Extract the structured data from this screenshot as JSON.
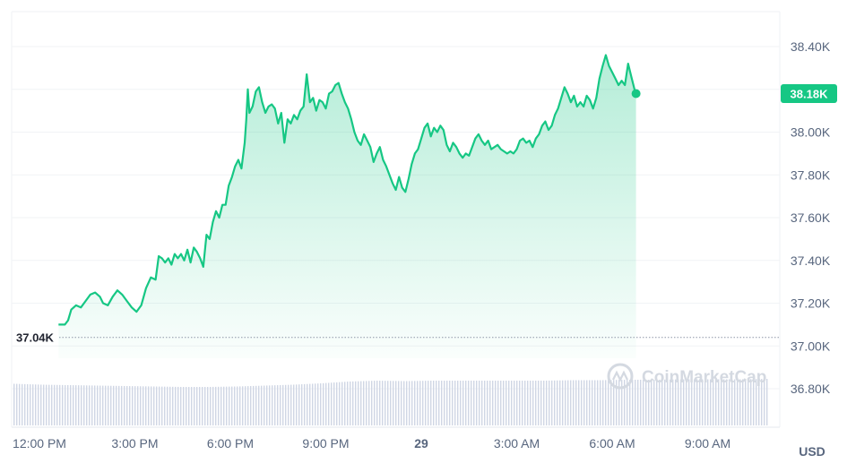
{
  "chart_data": {
    "type": "area",
    "y_unit": "USD",
    "ylim": [
      36.62,
      38.55
    ],
    "y_ticks": [
      {
        "label": "38.40K",
        "value": 38.4
      },
      {
        "label": "38.20K",
        "value": 38.2
      },
      {
        "label": "38.00K",
        "value": 38.0
      },
      {
        "label": "37.80K",
        "value": 37.8
      },
      {
        "label": "37.60K",
        "value": 37.6
      },
      {
        "label": "37.40K",
        "value": 37.4
      },
      {
        "label": "37.20K",
        "value": 37.2
      },
      {
        "label": "37.00K",
        "value": 37.0
      },
      {
        "label": "36.80K",
        "value": 36.8
      }
    ],
    "x_ticks": [
      {
        "label": "12:00 PM",
        "hour": 12,
        "bold": false
      },
      {
        "label": "3:00 PM",
        "hour": 15,
        "bold": false
      },
      {
        "label": "6:00 PM",
        "hour": 18,
        "bold": false
      },
      {
        "label": "9:00 PM",
        "hour": 21,
        "bold": false
      },
      {
        "label": "29",
        "hour": 24,
        "bold": true
      },
      {
        "label": "3:00 AM",
        "hour": 27,
        "bold": false
      },
      {
        "label": "6:00 AM",
        "hour": 30,
        "bold": false
      },
      {
        "label": "9:00 AM",
        "hour": 33,
        "bold": false
      }
    ],
    "baseline": {
      "label": "37.04K",
      "value": 37.04
    },
    "current": {
      "label": "38.18K",
      "value": 38.18
    },
    "series": [
      {
        "color": "#16c784",
        "points": [
          [
            12.6,
            37.1
          ],
          [
            12.8,
            37.1
          ],
          [
            12.9,
            37.12
          ],
          [
            13.0,
            37.17
          ],
          [
            13.15,
            37.19
          ],
          [
            13.3,
            37.18
          ],
          [
            13.45,
            37.21
          ],
          [
            13.6,
            37.24
          ],
          [
            13.75,
            37.25
          ],
          [
            13.9,
            37.23
          ],
          [
            14.0,
            37.2
          ],
          [
            14.15,
            37.19
          ],
          [
            14.3,
            37.23
          ],
          [
            14.45,
            37.26
          ],
          [
            14.6,
            37.24
          ],
          [
            14.75,
            37.21
          ],
          [
            14.9,
            37.18
          ],
          [
            15.05,
            37.16
          ],
          [
            15.2,
            37.19
          ],
          [
            15.35,
            37.27
          ],
          [
            15.5,
            37.32
          ],
          [
            15.65,
            37.31
          ],
          [
            15.75,
            37.42
          ],
          [
            15.85,
            37.41
          ],
          [
            15.95,
            37.39
          ],
          [
            16.05,
            37.41
          ],
          [
            16.15,
            37.38
          ],
          [
            16.25,
            37.43
          ],
          [
            16.35,
            37.41
          ],
          [
            16.45,
            37.43
          ],
          [
            16.55,
            37.4
          ],
          [
            16.65,
            37.45
          ],
          [
            16.75,
            37.39
          ],
          [
            16.85,
            37.46
          ],
          [
            16.95,
            37.44
          ],
          [
            17.05,
            37.41
          ],
          [
            17.15,
            37.37
          ],
          [
            17.25,
            37.52
          ],
          [
            17.35,
            37.5
          ],
          [
            17.45,
            37.58
          ],
          [
            17.55,
            37.63
          ],
          [
            17.65,
            37.6
          ],
          [
            17.75,
            37.66
          ],
          [
            17.85,
            37.66
          ],
          [
            17.95,
            37.75
          ],
          [
            18.05,
            37.79
          ],
          [
            18.15,
            37.84
          ],
          [
            18.25,
            37.87
          ],
          [
            18.35,
            37.83
          ],
          [
            18.45,
            37.95
          ],
          [
            18.5,
            38.06
          ],
          [
            18.55,
            38.2
          ],
          [
            18.6,
            38.09
          ],
          [
            18.7,
            38.12
          ],
          [
            18.8,
            38.19
          ],
          [
            18.9,
            38.21
          ],
          [
            19.0,
            38.14
          ],
          [
            19.1,
            38.09
          ],
          [
            19.2,
            38.12
          ],
          [
            19.3,
            38.13
          ],
          [
            19.4,
            38.11
          ],
          [
            19.5,
            38.04
          ],
          [
            19.6,
            38.09
          ],
          [
            19.7,
            37.95
          ],
          [
            19.8,
            38.06
          ],
          [
            19.9,
            38.04
          ],
          [
            20.0,
            38.08
          ],
          [
            20.1,
            38.06
          ],
          [
            20.2,
            38.1
          ],
          [
            20.3,
            38.12
          ],
          [
            20.4,
            38.27
          ],
          [
            20.5,
            38.14
          ],
          [
            20.6,
            38.16
          ],
          [
            20.7,
            38.1
          ],
          [
            20.8,
            38.15
          ],
          [
            20.9,
            38.14
          ],
          [
            21.0,
            38.11
          ],
          [
            21.1,
            38.18
          ],
          [
            21.2,
            38.19
          ],
          [
            21.3,
            38.22
          ],
          [
            21.4,
            38.23
          ],
          [
            21.5,
            38.18
          ],
          [
            21.6,
            38.14
          ],
          [
            21.7,
            38.11
          ],
          [
            21.8,
            38.06
          ],
          [
            21.9,
            38.0
          ],
          [
            22.0,
            37.96
          ],
          [
            22.1,
            37.94
          ],
          [
            22.2,
            37.99
          ],
          [
            22.3,
            37.96
          ],
          [
            22.4,
            37.93
          ],
          [
            22.5,
            37.86
          ],
          [
            22.6,
            37.9
          ],
          [
            22.7,
            37.93
          ],
          [
            22.8,
            37.87
          ],
          [
            22.9,
            37.84
          ],
          [
            23.0,
            37.8
          ],
          [
            23.1,
            37.76
          ],
          [
            23.2,
            37.73
          ],
          [
            23.3,
            37.79
          ],
          [
            23.4,
            37.74
          ],
          [
            23.5,
            37.72
          ],
          [
            23.6,
            37.78
          ],
          [
            23.7,
            37.85
          ],
          [
            23.8,
            37.9
          ],
          [
            23.9,
            37.92
          ],
          [
            24.0,
            37.97
          ],
          [
            24.1,
            38.02
          ],
          [
            24.2,
            38.04
          ],
          [
            24.3,
            37.98
          ],
          [
            24.4,
            38.02
          ],
          [
            24.5,
            38.0
          ],
          [
            24.6,
            38.03
          ],
          [
            24.7,
            38.01
          ],
          [
            24.8,
            37.94
          ],
          [
            24.9,
            37.91
          ],
          [
            25.0,
            37.95
          ],
          [
            25.1,
            37.93
          ],
          [
            25.2,
            37.9
          ],
          [
            25.3,
            37.88
          ],
          [
            25.4,
            37.9
          ],
          [
            25.5,
            37.89
          ],
          [
            25.6,
            37.93
          ],
          [
            25.7,
            37.97
          ],
          [
            25.8,
            37.99
          ],
          [
            25.9,
            37.96
          ],
          [
            26.0,
            37.94
          ],
          [
            26.1,
            37.96
          ],
          [
            26.2,
            37.92
          ],
          [
            26.3,
            37.93
          ],
          [
            26.4,
            37.94
          ],
          [
            26.5,
            37.92
          ],
          [
            26.6,
            37.91
          ],
          [
            26.7,
            37.9
          ],
          [
            26.8,
            37.91
          ],
          [
            26.9,
            37.9
          ],
          [
            27.0,
            37.92
          ],
          [
            27.1,
            37.96
          ],
          [
            27.2,
            37.97
          ],
          [
            27.3,
            37.95
          ],
          [
            27.4,
            37.96
          ],
          [
            27.5,
            37.93
          ],
          [
            27.6,
            37.97
          ],
          [
            27.7,
            37.99
          ],
          [
            27.8,
            38.03
          ],
          [
            27.9,
            38.05
          ],
          [
            28.0,
            38.01
          ],
          [
            28.1,
            38.03
          ],
          [
            28.2,
            38.08
          ],
          [
            28.3,
            38.11
          ],
          [
            28.4,
            38.16
          ],
          [
            28.5,
            38.21
          ],
          [
            28.6,
            38.18
          ],
          [
            28.7,
            38.14
          ],
          [
            28.8,
            38.17
          ],
          [
            28.9,
            38.12
          ],
          [
            29.0,
            38.14
          ],
          [
            29.1,
            38.12
          ],
          [
            29.2,
            38.17
          ],
          [
            29.3,
            38.15
          ],
          [
            29.4,
            38.11
          ],
          [
            29.5,
            38.16
          ],
          [
            29.6,
            38.25
          ],
          [
            29.7,
            38.31
          ],
          [
            29.8,
            38.36
          ],
          [
            29.9,
            38.31
          ],
          [
            30.0,
            38.28
          ],
          [
            30.1,
            38.25
          ],
          [
            30.2,
            38.22
          ],
          [
            30.3,
            38.24
          ],
          [
            30.4,
            38.22
          ],
          [
            30.5,
            38.32
          ],
          [
            30.6,
            38.26
          ],
          [
            30.7,
            38.2
          ],
          [
            30.75,
            38.18
          ]
        ]
      }
    ],
    "volume": {
      "color": "#cfd6e4",
      "values": [
        0.93,
        0.91,
        0.9,
        0.89,
        0.88,
        0.87,
        0.86,
        0.86,
        0.87,
        0.89,
        0.91,
        0.94,
        0.98,
        1.0,
        0.99,
        1.0,
        1.0,
        1.0,
        1.0,
        1.0,
        1.01,
        1.01,
        1.02,
        1.02,
        1.03,
        1.03,
        1.03,
        1.04
      ]
    },
    "watermark": "CoinMarketCap"
  }
}
